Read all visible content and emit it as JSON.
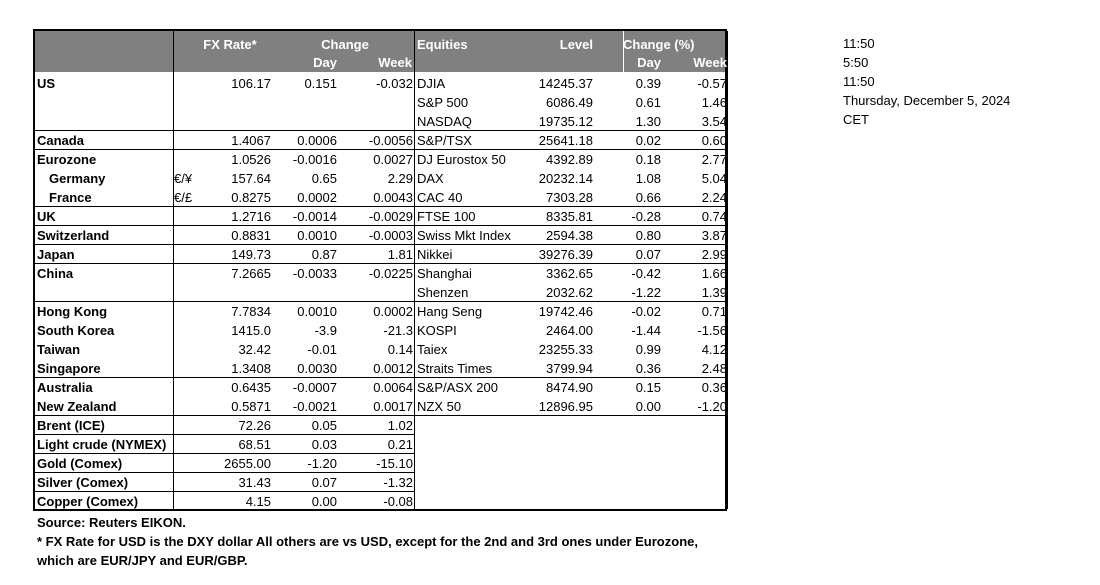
{
  "headers": {
    "fx_rate": "FX Rate*",
    "change": "Change",
    "day": "Day",
    "week": "Week",
    "equities": "Equities",
    "level": "Level",
    "change_pct": "Change (%)",
    "eq_day": "Day",
    "eq_week": "Week"
  },
  "rows": [
    {
      "country": "US",
      "sym": "",
      "fx": "106.17",
      "day": "0.151",
      "week": "-0.032",
      "index": "DJIA",
      "level": "14245.37",
      "eq_day": "0.39",
      "eq_week": "-0.57"
    },
    {
      "country": "",
      "sym": "",
      "fx": "",
      "day": "",
      "week": "",
      "index": "S&P 500",
      "level": "6086.49",
      "eq_day": "0.61",
      "eq_week": "1.46"
    },
    {
      "country": "",
      "sym": "",
      "fx": "",
      "day": "",
      "week": "",
      "index": "NASDAQ",
      "level": "19735.12",
      "eq_day": "1.30",
      "eq_week": "3.54"
    },
    {
      "country": "Canada",
      "sym": "",
      "fx": "1.4067",
      "day": "0.0006",
      "week": "-0.0056",
      "index": "S&P/TSX",
      "level": "25641.18",
      "eq_day": "0.02",
      "eq_week": "0.60"
    },
    {
      "country": "Eurozone",
      "sym": "",
      "fx": "1.0526",
      "day": "-0.0016",
      "week": "0.0027",
      "index": "DJ Eurostox 50",
      "level": "4392.89",
      "eq_day": "0.18",
      "eq_week": "2.77"
    },
    {
      "country": "Germany",
      "sym": "€/¥",
      "fx": "157.64",
      "day": "0.65",
      "week": "2.29",
      "index": "DAX",
      "level": "20232.14",
      "eq_day": "1.08",
      "eq_week": "5.04"
    },
    {
      "country": "France",
      "sym": "€/£",
      "fx": "0.8275",
      "day": "0.0002",
      "week": "0.0043",
      "index": "CAC 40",
      "level": "7303.28",
      "eq_day": "0.66",
      "eq_week": "2.24"
    },
    {
      "country": "UK",
      "sym": "",
      "fx": "1.2716",
      "day": "-0.0014",
      "week": "-0.0029",
      "index": "FTSE 100",
      "level": "8335.81",
      "eq_day": "-0.28",
      "eq_week": "0.74"
    },
    {
      "country": "Switzerland",
      "sym": "",
      "fx": "0.8831",
      "day": "0.0010",
      "week": "-0.0003",
      "index": "Swiss Mkt Index",
      "level": "2594.38",
      "eq_day": "0.80",
      "eq_week": "3.87"
    },
    {
      "country": "Japan",
      "sym": "",
      "fx": "149.73",
      "day": "0.87",
      "week": "1.81",
      "index": "Nikkei",
      "level": "39276.39",
      "eq_day": "0.07",
      "eq_week": "2.99"
    },
    {
      "country": "China",
      "sym": "",
      "fx": "7.2665",
      "day": "-0.0033",
      "week": "-0.0225",
      "index": "Shanghai",
      "level": "3362.65",
      "eq_day": "-0.42",
      "eq_week": "1.66"
    },
    {
      "country": "",
      "sym": "",
      "fx": "",
      "day": "",
      "week": "",
      "index": "Shenzen",
      "level": "2032.62",
      "eq_day": "-1.22",
      "eq_week": "1.39"
    },
    {
      "country": "Hong Kong",
      "sym": "",
      "fx": "7.7834",
      "day": "0.0010",
      "week": "0.0002",
      "index": "Hang Seng",
      "level": "19742.46",
      "eq_day": "-0.02",
      "eq_week": "0.71"
    },
    {
      "country": "South Korea",
      "sym": "",
      "fx": "1415.0",
      "day": "-3.9",
      "week": "-21.3",
      "index": "KOSPI",
      "level": "2464.00",
      "eq_day": "-1.44",
      "eq_week": "-1.56"
    },
    {
      "country": "Taiwan",
      "sym": "",
      "fx": "32.42",
      "day": "-0.01",
      "week": "0.14",
      "index": "Taiex",
      "level": "23255.33",
      "eq_day": "0.99",
      "eq_week": "4.12"
    },
    {
      "country": "Singapore",
      "sym": "",
      "fx": "1.3408",
      "day": "0.0030",
      "week": "0.0012",
      "index": "Straits Times",
      "level": "3799.94",
      "eq_day": "0.36",
      "eq_week": "2.48"
    },
    {
      "country": "Australia",
      "sym": "",
      "fx": "0.6435",
      "day": "-0.0007",
      "week": "0.0064",
      "index": "S&P/ASX  200",
      "level": "8474.90",
      "eq_day": "0.15",
      "eq_week": "0.36"
    },
    {
      "country": "New Zealand",
      "sym": "",
      "fx": "0.5871",
      "day": "-0.0021",
      "week": "0.0017",
      "index": "NZX 50",
      "level": "12896.95",
      "eq_day": "0.00",
      "eq_week": "-1.20"
    },
    {
      "country": "Brent (ICE)",
      "sym": "",
      "fx": "72.26",
      "day": "0.05",
      "week": "1.02",
      "index": "",
      "level": "",
      "eq_day": "",
      "eq_week": ""
    },
    {
      "country": "Light crude (NYMEX)",
      "sym": "",
      "fx": "68.51",
      "day": "0.03",
      "week": "0.21",
      "index": "",
      "level": "",
      "eq_day": "",
      "eq_week": ""
    },
    {
      "country": "Gold (Comex)",
      "sym": "",
      "fx": "2655.00",
      "day": "-1.20",
      "week": "-15.10",
      "index": "",
      "level": "",
      "eq_day": "",
      "eq_week": ""
    },
    {
      "country": "Silver (Comex)",
      "sym": "",
      "fx": "31.43",
      "day": "0.07",
      "week": "-1.32",
      "index": "",
      "level": "",
      "eq_day": "",
      "eq_week": ""
    },
    {
      "country": "Copper (Comex)",
      "sym": "",
      "fx": "4.15",
      "day": "0.00",
      "week": "-0.08",
      "index": "",
      "level": "",
      "eq_day": "",
      "eq_week": ""
    }
  ],
  "times": [
    "11:50",
    "5:50",
    "11:50",
    "Thursday, December 5, 2024",
    "CET"
  ],
  "footnotes": {
    "source": "Source:  Reuters EIKON.",
    "note1": "* FX Rate for USD is the DXY dollar  All others are vs USD, except for the 2nd and 3rd ones under Eurozone,",
    "note2": " which are EUR/JPY and EUR/GBP."
  }
}
